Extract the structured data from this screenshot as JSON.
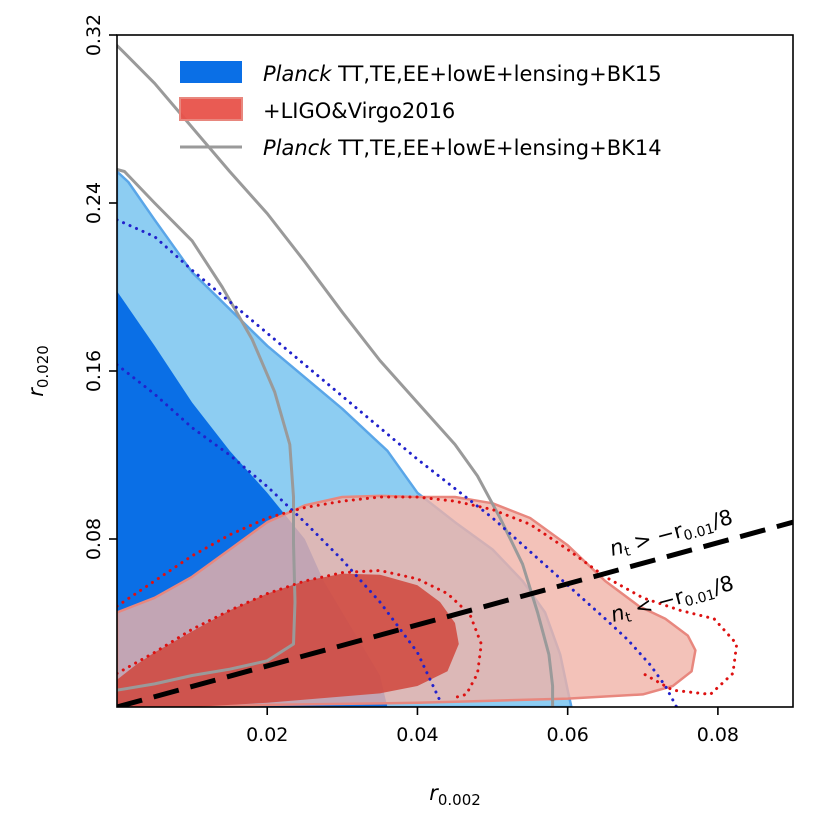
{
  "chart_data": {
    "type": "contour",
    "xlabel": "r_{0.002}",
    "ylabel": "r_{0.020}",
    "xlabel_parts": {
      "base": "r",
      "sub": "0.002"
    },
    "ylabel_parts": {
      "base": "r",
      "sub": "0.020"
    },
    "xlim": [
      0.0,
      0.09
    ],
    "ylim": [
      0.0,
      0.32
    ],
    "xticks": [
      0.02,
      0.04,
      0.06,
      0.08
    ],
    "xtick_labels": [
      "0.02",
      "0.04",
      "0.06",
      "0.08"
    ],
    "yticks": [
      0.08,
      0.16,
      0.24,
      0.32
    ],
    "ytick_labels": [
      "0.08",
      "0.16",
      "0.24",
      "0.32"
    ],
    "grid": false,
    "legend_position": "top-right",
    "legend": [
      {
        "italic": "Planck",
        "text": " TT,TE,EE+lowE+lensing+BK15",
        "style": "filled",
        "color": "#0a6fe6"
      },
      {
        "italic": "",
        "text": "+LIGO&Virgo2016",
        "style": "filled",
        "color": "#e8524a"
      },
      {
        "italic": "Planck",
        "text": " TT,TE,EE+lowE+lensing+BK14",
        "style": "line",
        "color": "#9a9a9a"
      }
    ],
    "series": [
      {
        "name": "Planck TT,TE,EE+lowE+lensing+BK15 (95%)",
        "kind": "filled",
        "color": "#8dcdf2",
        "edge": "#5aa6e8",
        "points": [
          [
            0,
            0
          ],
          [
            0,
            0.255
          ],
          [
            0.0015,
            0.25
          ],
          [
            0.005,
            0.232
          ],
          [
            0.01,
            0.207
          ],
          [
            0.02,
            0.172
          ],
          [
            0.03,
            0.142
          ],
          [
            0.036,
            0.122
          ],
          [
            0.04,
            0.102
          ],
          [
            0.045,
            0.088
          ],
          [
            0.05,
            0.075
          ],
          [
            0.054,
            0.06
          ],
          [
            0.057,
            0.045
          ],
          [
            0.059,
            0.025
          ],
          [
            0.06,
            0.008
          ],
          [
            0.0605,
            0
          ],
          [
            0,
            0
          ]
        ]
      },
      {
        "name": "Planck TT,TE,EE+lowE+lensing+BK15 (68%)",
        "kind": "filled",
        "color": "#0a6fe6",
        "points": [
          [
            0,
            0
          ],
          [
            0,
            0.198
          ],
          [
            0.005,
            0.172
          ],
          [
            0.01,
            0.145
          ],
          [
            0.015,
            0.122
          ],
          [
            0.02,
            0.102
          ],
          [
            0.025,
            0.08
          ],
          [
            0.0275,
            0.06
          ],
          [
            0.03,
            0.045
          ],
          [
            0.0325,
            0.03
          ],
          [
            0.035,
            0.015
          ],
          [
            0.036,
            0
          ],
          [
            0,
            0
          ]
        ]
      },
      {
        "name": "+LIGO&Virgo2016 (95%)",
        "kind": "filled",
        "color": "#f0b3a8",
        "edge": "#e8877e",
        "alpha": 0.8,
        "points": [
          [
            0,
            0
          ],
          [
            0,
            0.045
          ],
          [
            0.005,
            0.052
          ],
          [
            0.01,
            0.062
          ],
          [
            0.015,
            0.075
          ],
          [
            0.02,
            0.088
          ],
          [
            0.025,
            0.096
          ],
          [
            0.03,
            0.1
          ],
          [
            0.035,
            0.1005
          ],
          [
            0.04,
            0.1
          ],
          [
            0.045,
            0.1
          ],
          [
            0.05,
            0.097
          ],
          [
            0.055,
            0.09
          ],
          [
            0.06,
            0.077
          ],
          [
            0.065,
            0.06
          ],
          [
            0.0695,
            0.048
          ],
          [
            0.073,
            0.042
          ],
          [
            0.076,
            0.034
          ],
          [
            0.077,
            0.027
          ],
          [
            0.0765,
            0.017
          ],
          [
            0.074,
            0.01
          ],
          [
            0.07,
            0.006
          ],
          [
            0.06,
            0.004
          ],
          [
            0.05,
            0.003
          ],
          [
            0.04,
            0.002
          ],
          [
            0.03,
            0.0015
          ],
          [
            0.02,
            0.001
          ],
          [
            0.01,
            0
          ],
          [
            0,
            0
          ]
        ]
      },
      {
        "name": "+LIGO&Virgo2016 (68%)",
        "kind": "filled",
        "color": "#d0453c",
        "alpha": 0.85,
        "points": [
          [
            0,
            0
          ],
          [
            0,
            0.013
          ],
          [
            0.0025,
            0.02
          ],
          [
            0.005,
            0.026
          ],
          [
            0.01,
            0.036
          ],
          [
            0.015,
            0.046
          ],
          [
            0.02,
            0.054
          ],
          [
            0.025,
            0.06
          ],
          [
            0.03,
            0.0635
          ],
          [
            0.035,
            0.063
          ],
          [
            0.04,
            0.058
          ],
          [
            0.043,
            0.05
          ],
          [
            0.045,
            0.04
          ],
          [
            0.0455,
            0.03
          ],
          [
            0.044,
            0.017
          ],
          [
            0.04,
            0.01
          ],
          [
            0.035,
            0.0065
          ],
          [
            0.03,
            0.005
          ],
          [
            0.025,
            0.0035
          ],
          [
            0.02,
            0.002
          ],
          [
            0.015,
            0.001
          ],
          [
            0.01,
            0
          ],
          [
            0,
            0
          ]
        ]
      },
      {
        "name": "Planck TT,TE,EE+lowE+lensing+BK14 (95%)",
        "kind": "line",
        "color": "#9a9a9a",
        "points": [
          [
            0,
            0.315
          ],
          [
            0.005,
            0.297
          ],
          [
            0.01,
            0.276
          ],
          [
            0.015,
            0.255
          ],
          [
            0.02,
            0.235
          ],
          [
            0.025,
            0.212
          ],
          [
            0.03,
            0.188
          ],
          [
            0.035,
            0.165
          ],
          [
            0.04,
            0.145
          ],
          [
            0.045,
            0.125
          ],
          [
            0.048,
            0.11
          ],
          [
            0.051,
            0.09
          ],
          [
            0.054,
            0.068
          ],
          [
            0.056,
            0.045
          ],
          [
            0.0575,
            0.025
          ],
          [
            0.058,
            0.01
          ],
          [
            0.058,
            0
          ]
        ]
      },
      {
        "name": "Planck TT,TE,EE+lowE+lensing+BK14 (68%)",
        "kind": "line",
        "color": "#9a9a9a",
        "points": [
          [
            0,
            0.008
          ],
          [
            0.005,
            0.011
          ],
          [
            0.01,
            0.015
          ],
          [
            0.015,
            0.018
          ],
          [
            0.02,
            0.022
          ],
          [
            0.0235,
            0.03
          ],
          [
            0.0237,
            0.05
          ],
          [
            0.0235,
            0.078
          ],
          [
            0.0235,
            0.1
          ],
          [
            0.023,
            0.125
          ],
          [
            0.021,
            0.15
          ],
          [
            0.018,
            0.175
          ],
          [
            0.014,
            0.2
          ],
          [
            0.01,
            0.222
          ],
          [
            0.005,
            0.24
          ],
          [
            0.001,
            0.255
          ],
          [
            0,
            0.256
          ]
        ]
      },
      {
        "name": "Planck+BK15 dotted (95%)",
        "kind": "dotted",
        "color": "#2222cc",
        "points": [
          [
            0,
            0.232
          ],
          [
            0.005,
            0.224
          ],
          [
            0.01,
            0.208
          ],
          [
            0.02,
            0.178
          ],
          [
            0.03,
            0.148
          ],
          [
            0.04,
            0.118
          ],
          [
            0.045,
            0.104
          ],
          [
            0.05,
            0.09
          ],
          [
            0.055,
            0.074
          ],
          [
            0.06,
            0.058
          ],
          [
            0.065,
            0.042
          ],
          [
            0.068,
            0.032
          ],
          [
            0.071,
            0.02
          ],
          [
            0.073,
            0.01
          ],
          [
            0.0745,
            0
          ]
        ]
      },
      {
        "name": "Planck+BK15 dotted (68%)",
        "kind": "dotted",
        "color": "#2222cc",
        "points": [
          [
            0,
            0.163
          ],
          [
            0.005,
            0.149
          ],
          [
            0.01,
            0.133
          ],
          [
            0.015,
            0.12
          ],
          [
            0.02,
            0.105
          ],
          [
            0.025,
            0.088
          ],
          [
            0.03,
            0.07
          ],
          [
            0.035,
            0.05
          ],
          [
            0.04,
            0.026
          ],
          [
            0.043,
            0.003
          ]
        ]
      },
      {
        "name": "+LIGO&Virgo dotted (95%)",
        "kind": "dotted",
        "color": "#dd1111",
        "points": [
          [
            0,
            0.048
          ],
          [
            0.005,
            0.06
          ],
          [
            0.01,
            0.072
          ],
          [
            0.015,
            0.082
          ],
          [
            0.02,
            0.09
          ],
          [
            0.025,
            0.095
          ],
          [
            0.03,
            0.098
          ],
          [
            0.035,
            0.1
          ],
          [
            0.04,
            0.1
          ],
          [
            0.045,
            0.098
          ],
          [
            0.05,
            0.094
          ],
          [
            0.055,
            0.087
          ],
          [
            0.06,
            0.075
          ],
          [
            0.065,
            0.062
          ],
          [
            0.07,
            0.052
          ],
          [
            0.075,
            0.046
          ],
          [
            0.0795,
            0.042
          ],
          [
            0.0825,
            0.03
          ],
          [
            0.082,
            0.016
          ],
          [
            0.079,
            0.006
          ],
          [
            0.074,
            0.008
          ],
          [
            0.07,
            0.016
          ]
        ]
      },
      {
        "name": "+LIGO&Virgo dotted (68%)",
        "kind": "dotted",
        "color": "#dd1111",
        "points": [
          [
            0,
            0.016
          ],
          [
            0.005,
            0.026
          ],
          [
            0.01,
            0.037
          ],
          [
            0.015,
            0.046
          ],
          [
            0.02,
            0.054
          ],
          [
            0.025,
            0.06
          ],
          [
            0.03,
            0.064
          ],
          [
            0.035,
            0.065
          ],
          [
            0.04,
            0.061
          ],
          [
            0.044,
            0.054
          ],
          [
            0.047,
            0.044
          ],
          [
            0.0485,
            0.03
          ],
          [
            0.048,
            0.016
          ],
          [
            0.0465,
            0.006
          ],
          [
            0.0445,
            0.004
          ]
        ]
      },
      {
        "name": "n_t = -r_{0.01}/8 boundary",
        "kind": "dashed",
        "color": "#000000",
        "points": [
          [
            0,
            0
          ],
          [
            0.09,
            0.088
          ]
        ]
      }
    ],
    "annotations": [
      {
        "base": "n",
        "sub": "t",
        "relation": ">",
        "rhs_base": "−r",
        "rhs_sub": "0.01",
        "rhs_tail": "/8",
        "text": "n_t > -r_{0.01}/8"
      },
      {
        "base": "n",
        "sub": "t",
        "relation": "<",
        "rhs_base": "−r",
        "rhs_sub": "0.01",
        "rhs_tail": "/8",
        "text": "n_t < -r_{0.01}/8"
      }
    ]
  }
}
